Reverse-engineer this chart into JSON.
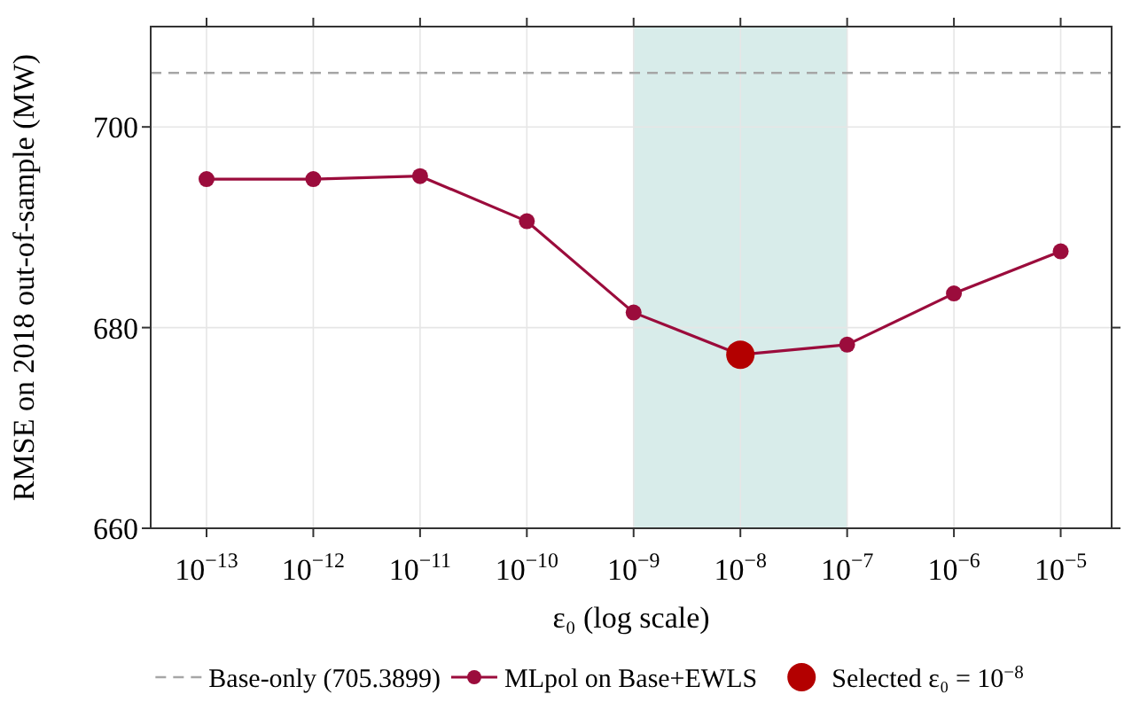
{
  "chart_data": {
    "type": "line",
    "xlabel": "ε₀ (log scale)",
    "ylabel": "RMSE on 2018 out-of-sample (MW)",
    "log": "x",
    "grid": true,
    "legend": "bottom",
    "marker": "circle",
    "line_style": "solid",
    "xlim": [
      3e-14,
      3e-05
    ],
    "xticks": [
      {
        "value": 1e-13,
        "label": "10$^{−13}$"
      },
      {
        "value": 1e-12,
        "label": "10$^{−12}$"
      },
      {
        "value": 1e-11,
        "label": "10$^{−11}$"
      },
      {
        "value": 1e-10,
        "label": "10$^{−10}$"
      },
      {
        "value": 1e-09,
        "label": "10$^{−9}$"
      },
      {
        "value": 1e-08,
        "label": "10$^{−8}$"
      },
      {
        "value": 1e-07,
        "label": "10$^{−7}$"
      },
      {
        "value": 1e-06,
        "label": "10$^{−6}$"
      },
      {
        "value": 1e-05,
        "label": "10$^{−5}$"
      }
    ],
    "ylim": [
      660,
      710
    ],
    "yticks": [
      660,
      680,
      700
    ],
    "ref_lines": [
      {
        "axis": "y",
        "value": 705.3899,
        "label": "Base-only (705.3899)",
        "color": "#a6a6a6",
        "line_style": "dashed"
      }
    ],
    "bands": [
      {
        "axis": "x",
        "from": 1e-09,
        "to": 1e-07,
        "color": "#d8ecea"
      }
    ],
    "series": [
      {
        "name": "MLpol on Base+EWLS",
        "color": "#9b0c3c",
        "x": [
          1e-13,
          1e-12,
          1e-11,
          1e-10,
          1e-09,
          1e-08,
          1e-07,
          1e-06,
          1e-05
        ],
        "values": [
          694.8,
          694.8,
          695.1,
          690.6,
          681.5,
          677.3,
          678.3,
          683.4,
          687.6
        ]
      },
      {
        "name": "Selected ε₀ = 10$^{−8}$",
        "type": "scatter",
        "color": "#b30000",
        "x": [
          1e-08
        ],
        "values": [
          677.3
        ]
      }
    ]
  }
}
